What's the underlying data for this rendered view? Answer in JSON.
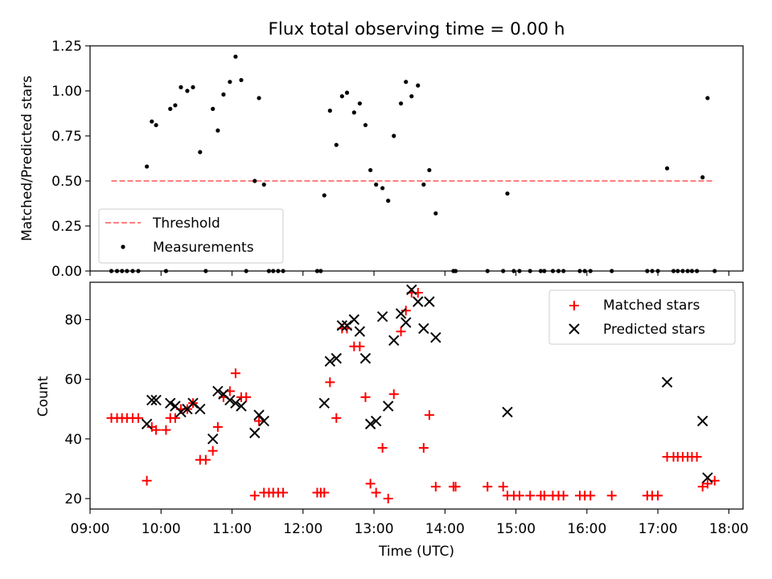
{
  "chart_data": [
    {
      "type": "scatter",
      "title": "Flux total observing time = 0.00 h",
      "xlabel": "",
      "ylabel": "Matched/Predicted stars",
      "ylim": [
        0,
        1.25
      ],
      "yticks": [
        "0.00",
        "0.25",
        "0.50",
        "0.75",
        "1.00",
        "1.25"
      ],
      "x_unit": "hours UTC",
      "xlim": [
        9.0,
        18.2
      ],
      "legend_position": "lower-left",
      "series": [
        {
          "name": "Threshold",
          "kind": "dashed-line",
          "color": "#ff7f7f",
          "x": [
            9.3,
            17.8
          ],
          "y": [
            0.5,
            0.5
          ]
        },
        {
          "name": "Measurements",
          "kind": "points",
          "color": "#000000",
          "x": [
            9.3,
            9.38,
            9.45,
            9.52,
            9.6,
            9.68,
            9.8,
            9.87,
            9.93,
            10.07,
            10.13,
            10.2,
            10.28,
            10.37,
            10.45,
            10.55,
            10.63,
            10.73,
            10.8,
            10.88,
            10.97,
            11.05,
            11.13,
            11.2,
            11.32,
            11.38,
            11.45,
            11.52,
            11.58,
            11.65,
            11.72,
            12.2,
            12.25,
            12.3,
            12.38,
            12.47,
            12.55,
            12.62,
            12.72,
            12.8,
            12.88,
            12.95,
            13.03,
            13.12,
            13.2,
            13.28,
            13.38,
            13.45,
            13.53,
            13.62,
            13.7,
            13.78,
            13.87,
            14.12,
            14.15,
            14.6,
            14.82,
            14.88,
            14.97,
            15.05,
            15.2,
            15.35,
            15.4,
            15.52,
            15.6,
            15.67,
            15.9,
            15.97,
            16.05,
            16.35,
            16.85,
            16.92,
            17.0,
            17.13,
            17.22,
            17.28,
            17.35,
            17.42,
            17.48,
            17.55,
            17.63,
            17.7,
            17.8
          ],
          "y": [
            0,
            0,
            0,
            0,
            0,
            0,
            0.58,
            0.83,
            0.81,
            0,
            0.9,
            0.92,
            1.02,
            1.0,
            1.02,
            0.66,
            0,
            0.9,
            0.78,
            0.98,
            1.05,
            1.19,
            1.06,
            0,
            0.5,
            0.96,
            0.48,
            0,
            0,
            0,
            0,
            0,
            0,
            0.42,
            0.89,
            0.7,
            0.97,
            0.99,
            0.88,
            0.93,
            0.81,
            0.56,
            0.48,
            0.46,
            0.39,
            0.75,
            0.93,
            1.05,
            0.97,
            1.03,
            0.48,
            0.56,
            0.32,
            0,
            0,
            0,
            0,
            0.43,
            0,
            0,
            0,
            0,
            0,
            0,
            0,
            0,
            0,
            0,
            0,
            0,
            0,
            0,
            0,
            0.57,
            0,
            0,
            0,
            0,
            0,
            0,
            0.52,
            0.96,
            0
          ]
        }
      ]
    },
    {
      "type": "scatter",
      "title": "",
      "xlabel": "Time (UTC)",
      "ylabel": "Count",
      "ylim": [
        16.5,
        92.5
      ],
      "yticks": [
        "20",
        "40",
        "60",
        "80"
      ],
      "xlim": [
        9.0,
        18.2
      ],
      "xticks": [
        "09:00",
        "10:00",
        "11:00",
        "12:00",
        "13:00",
        "14:00",
        "15:00",
        "16:00",
        "17:00",
        "18:00"
      ],
      "legend_position": "top-right",
      "series": [
        {
          "name": "Matched stars",
          "kind": "plus",
          "color": "#ff0000",
          "x": [
            9.3,
            9.38,
            9.45,
            9.52,
            9.6,
            9.68,
            9.8,
            9.87,
            9.93,
            10.07,
            10.13,
            10.2,
            10.28,
            10.37,
            10.45,
            10.55,
            10.63,
            10.73,
            10.8,
            10.88,
            10.97,
            11.05,
            11.13,
            11.2,
            11.32,
            11.38,
            11.45,
            11.52,
            11.58,
            11.65,
            11.72,
            12.2,
            12.25,
            12.3,
            12.38,
            12.47,
            12.55,
            12.62,
            12.72,
            12.8,
            12.88,
            12.95,
            13.03,
            13.12,
            13.2,
            13.28,
            13.38,
            13.45,
            13.53,
            13.62,
            13.7,
            13.78,
            13.87,
            14.12,
            14.15,
            14.6,
            14.82,
            14.88,
            14.97,
            15.05,
            15.2,
            15.35,
            15.4,
            15.52,
            15.6,
            15.67,
            15.9,
            15.97,
            16.05,
            16.35,
            16.85,
            16.92,
            17.0,
            17.13,
            17.22,
            17.28,
            17.35,
            17.42,
            17.48,
            17.55,
            17.63,
            17.7,
            17.8
          ],
          "y": [
            47,
            47,
            47,
            47,
            47,
            47,
            26,
            44,
            43,
            43,
            47,
            47,
            50,
            50,
            52,
            33,
            33,
            36,
            44,
            54,
            56,
            62,
            54,
            54,
            21,
            46,
            22,
            22,
            22,
            22,
            22,
            22,
            22,
            22,
            59,
            47,
            77,
            77,
            71,
            71,
            54,
            25,
            22,
            37,
            20,
            55,
            76,
            83,
            89,
            89,
            37,
            48,
            24,
            24,
            24,
            24,
            24,
            21,
            21,
            21,
            21,
            21,
            21,
            21,
            21,
            21,
            21,
            21,
            21,
            21,
            21,
            21,
            21,
            34,
            34,
            34,
            34,
            34,
            34,
            34,
            24,
            25,
            26
          ]
        },
        {
          "name": "Predicted stars",
          "kind": "cross",
          "color": "#000000",
          "x": [
            9.8,
            9.87,
            9.93,
            10.13,
            10.2,
            10.28,
            10.37,
            10.45,
            10.55,
            10.73,
            10.8,
            10.88,
            10.97,
            11.05,
            11.13,
            11.32,
            11.38,
            11.45,
            12.3,
            12.38,
            12.47,
            12.55,
            12.62,
            12.72,
            12.8,
            12.88,
            12.95,
            13.03,
            13.12,
            13.2,
            13.28,
            13.38,
            13.45,
            13.53,
            13.62,
            13.7,
            13.78,
            13.87,
            14.88,
            17.13,
            17.63,
            17.7
          ],
          "y": [
            45,
            53,
            53,
            52,
            51,
            49,
            50,
            52,
            50,
            40,
            56,
            55,
            53,
            52,
            51,
            42,
            48,
            46,
            52,
            66,
            67,
            78,
            78,
            80,
            76,
            67,
            45,
            46,
            81,
            51,
            73,
            82,
            79,
            90,
            86,
            77,
            86,
            74,
            49,
            59,
            46,
            27
          ]
        }
      ]
    }
  ]
}
